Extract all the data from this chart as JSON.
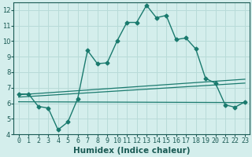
{
  "title": "",
  "xlabel": "Humidex (Indice chaleur)",
  "xlim": [
    -0.5,
    23.5
  ],
  "ylim": [
    4,
    12.5
  ],
  "yticks": [
    4,
    5,
    6,
    7,
    8,
    9,
    10,
    11,
    12
  ],
  "xticks": [
    0,
    1,
    2,
    3,
    4,
    5,
    6,
    7,
    8,
    9,
    10,
    11,
    12,
    13,
    14,
    15,
    16,
    17,
    18,
    19,
    20,
    21,
    22,
    23
  ],
  "bg_color": "#d4eeec",
  "grid_color": "#b8dbd8",
  "line_color": "#1a7a6e",
  "main_line": {
    "x": [
      0,
      1,
      2,
      3,
      4,
      5,
      6,
      7,
      8,
      9,
      10,
      11,
      12,
      13,
      14,
      15,
      16,
      17,
      18,
      19,
      20,
      21,
      22,
      23
    ],
    "y": [
      6.6,
      6.6,
      5.8,
      5.7,
      4.3,
      4.8,
      6.3,
      9.4,
      8.55,
      8.6,
      10.0,
      11.2,
      11.2,
      12.3,
      11.5,
      11.65,
      10.1,
      10.2,
      9.5,
      7.6,
      7.3,
      5.9,
      5.75,
      6.1
    ],
    "marker": "D",
    "markersize": 2.5,
    "lw": 1.0
  },
  "trend_lines": [
    {
      "x0": 0,
      "y0": 6.55,
      "x1": 23,
      "y1": 7.55
    },
    {
      "x0": 0,
      "y0": 6.4,
      "x1": 23,
      "y1": 7.3
    },
    {
      "x0": 0,
      "y0": 6.1,
      "x1": 23,
      "y1": 6.05
    }
  ],
  "tick_fontsize": 6,
  "xlabel_fontsize": 7.5
}
